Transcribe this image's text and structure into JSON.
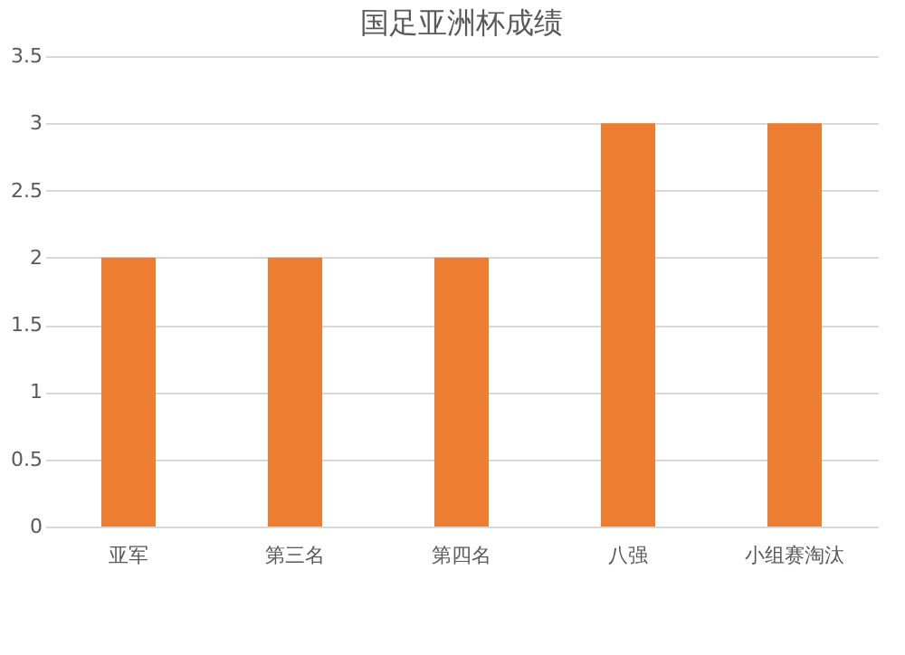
{
  "chart_data": {
    "type": "bar",
    "title": "国足亚洲杯成绩",
    "categories": [
      "亚军",
      "第三名",
      "第四名",
      "八强",
      "小组赛淘汰"
    ],
    "values": [
      2,
      2,
      2,
      3,
      3
    ],
    "color": "#ed7d31",
    "ylim": [
      0,
      3.5
    ],
    "yticks": [
      0,
      0.5,
      1,
      1.5,
      2,
      2.5,
      3,
      3.5
    ],
    "grid": "y"
  }
}
